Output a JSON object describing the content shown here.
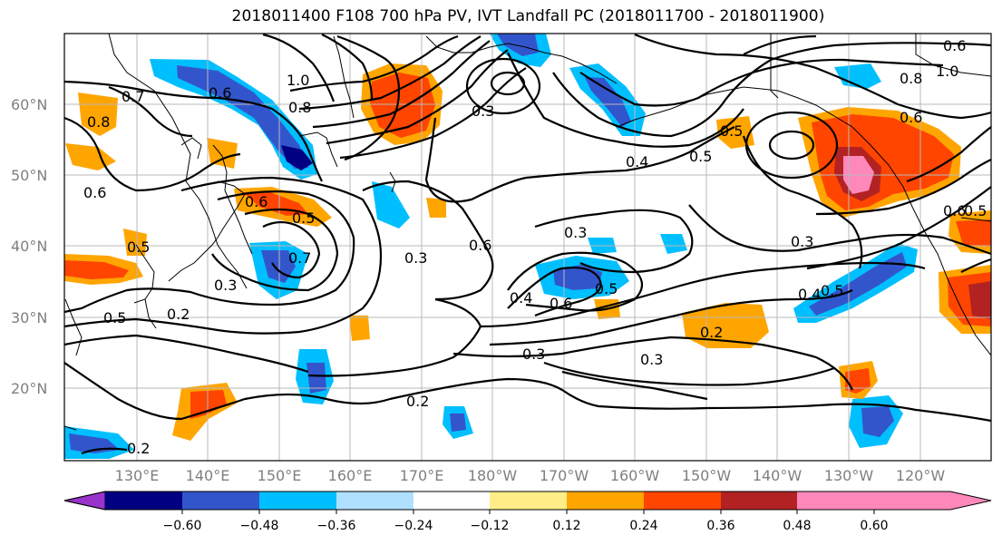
{
  "title": "2018011400 F108 700 hPa PV, IVT Landfall PC (2018011700 - 2018011900)",
  "lat_labels": [
    "60°N",
    "50°N",
    "40°N",
    "30°N",
    "20°N"
  ],
  "lon_labels": [
    "130°E",
    "140°E",
    "150°E",
    "160°E",
    "170°E",
    "180°W",
    "170°W",
    "160°W",
    "150°W",
    "140°W",
    "130°W",
    "120°W"
  ],
  "colorbar": {
    "colors": [
      "#9933cc",
      "#000080",
      "#3355cc",
      "#00bfff",
      "#b0e0ff",
      "#ffffff",
      "#ffee88",
      "#ffa500",
      "#ff4500",
      "#b22222",
      "#ff88bb"
    ],
    "tick_labels": [
      "−0.60",
      "−0.48",
      "−0.36",
      "−0.24",
      "−0.12",
      "0.12",
      "0.24",
      "0.36",
      "0.48",
      "0.60"
    ]
  },
  "contour_labels": [
    "0.6",
    "0.7",
    "0.8",
    "0.6",
    "0.5",
    "0.3",
    "0.2",
    "0.3",
    "0.4",
    "0.5",
    "0.3",
    "1.0",
    "0.8",
    "0.6",
    "0.3",
    "0.4",
    "0.5",
    "0.7",
    "0.6",
    "0.3",
    "0.6",
    "0.5",
    "0.4",
    "0.6",
    "0.5",
    "0.6",
    "0.2",
    "0.3",
    "0.3",
    "0.2",
    "0.2",
    "1.0",
    "0.5",
    "0.5",
    "0.8",
    "0.6",
    "0.5",
    "0.2"
  ]
}
